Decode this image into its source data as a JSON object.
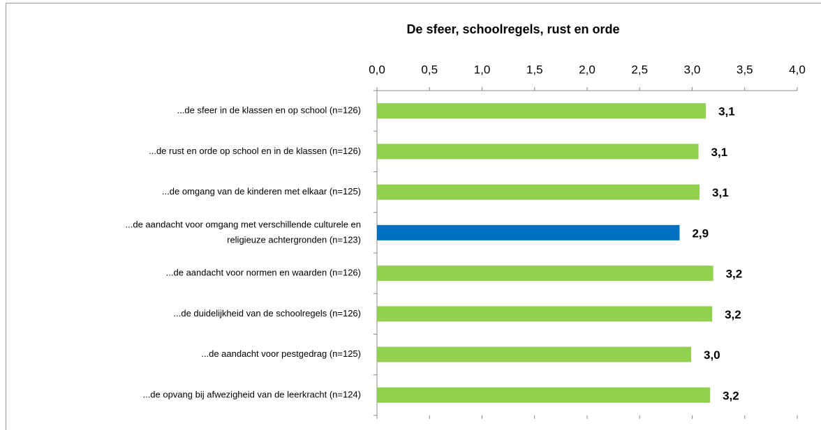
{
  "chart_data": {
    "type": "barh",
    "title": "De sfeer, schoolregels, rust en orde",
    "categories": [
      "...de sfeer in de klassen en op school (n=126)",
      "...de rust en orde op school en in de klassen (n=126)",
      "...de omgang van de kinderen met elkaar (n=125)",
      [
        "...de aandacht voor omgang met verschillende culturele en",
        "religieuze achtergronden (n=123)"
      ],
      "...de aandacht voor normen en waarden (n=126)",
      "...de duidelijkheid van de schoolregels (n=126)",
      "...de aandacht voor pestgedrag (n=125)",
      "...de opvang bij afwezigheid van de leerkracht (n=124)"
    ],
    "values": [
      3.13,
      3.06,
      3.07,
      2.88,
      3.2,
      3.19,
      2.99,
      3.17
    ],
    "value_labels": [
      "3,1",
      "3,1",
      "3,1",
      "2,9",
      "3,2",
      "3,2",
      "3,0",
      "3,2"
    ],
    "colors": [
      "#92d050",
      "#92d050",
      "#92d050",
      "#0070c0",
      "#92d050",
      "#92d050",
      "#92d050",
      "#92d050"
    ],
    "xlim": [
      0,
      4
    ],
    "xticks": [
      {
        "value": 0,
        "label": "0,0"
      },
      {
        "value": 0.5,
        "label": "0,5"
      },
      {
        "value": 1,
        "label": "1,0"
      },
      {
        "value": 1.5,
        "label": "1,5"
      },
      {
        "value": 2,
        "label": "2,0"
      },
      {
        "value": 2.5,
        "label": "2,5"
      },
      {
        "value": 3,
        "label": "3,0"
      },
      {
        "value": 3.5,
        "label": "3,5"
      },
      {
        "value": 4,
        "label": "4,0"
      }
    ],
    "axis_position": "top"
  }
}
